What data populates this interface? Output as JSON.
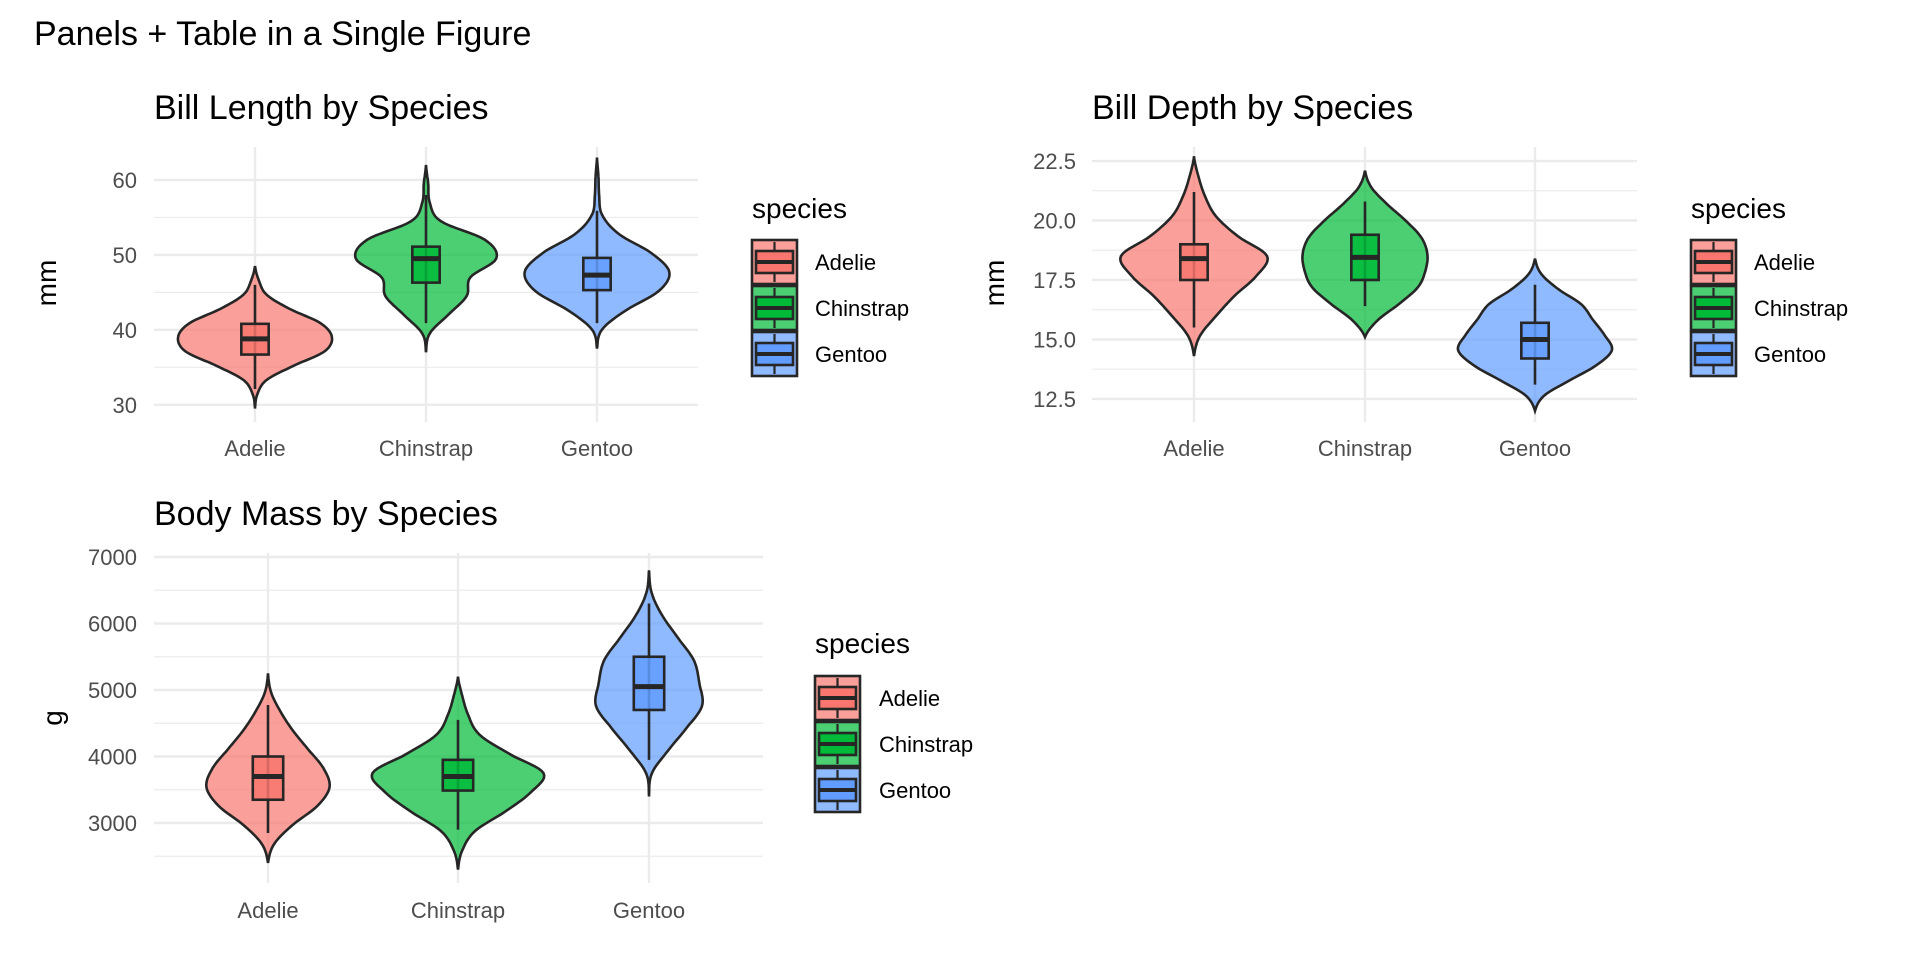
{
  "figure_title": "Panels + Table in a Single Figure",
  "colors": {
    "Adelie": "#F8766D",
    "Chinstrap": "#00BA38",
    "Gentoo": "#619CFF",
    "outline": "#262626",
    "grid": "#EBEBEB"
  },
  "chart_data": [
    {
      "type": "violin",
      "title": "Bill Length by Species",
      "xlabel": "",
      "ylabel": "mm",
      "categories": [
        "Adelie",
        "Chinstrap",
        "Gentoo"
      ],
      "yticks": [
        "30",
        "40",
        "50",
        "60"
      ],
      "ytick_values": [
        30,
        40,
        50,
        60
      ],
      "minor_ticks": [
        35,
        45,
        55
      ],
      "ylim": [
        27.7,
        64.4
      ],
      "grid": true,
      "legend": {
        "title": "species",
        "placement": "right",
        "entries": [
          "Adelie",
          "Chinstrap",
          "Gentoo"
        ]
      },
      "series": [
        {
          "name": "Adelie",
          "width_scale": 1.0,
          "violin": {
            "min": 29.5,
            "max": 48.5,
            "density": [
              0,
              0.03,
              0.15,
              0.5,
              0.9,
              1.0,
              0.85,
              0.45,
              0.15,
              0.05,
              0
            ]
          },
          "box": {
            "lower_whisker": 32.1,
            "q1": 36.7,
            "median": 38.8,
            "q3": 40.8,
            "upper_whisker": 46.0
          }
        },
        {
          "name": "Chinstrap",
          "width_scale": 0.96,
          "violin": {
            "min": 37,
            "max": 62,
            "density": [
              0,
              0.05,
              0.3,
              0.55,
              0.6,
              0.95,
              0.8,
              0.2,
              0.05,
              0.03,
              0
            ]
          },
          "box": {
            "lower_whisker": 40.9,
            "q1": 46.3,
            "median": 49.5,
            "q3": 51.1,
            "upper_whisker": 58.0
          }
        },
        {
          "name": "Gentoo",
          "width_scale": 0.94,
          "violin": {
            "min": 37.5,
            "max": 63,
            "density": [
              0,
              0.07,
              0.4,
              0.85,
              1.0,
              0.75,
              0.3,
              0.07,
              0.03,
              0.02,
              0
            ]
          },
          "box": {
            "lower_whisker": 40.9,
            "q1": 45.3,
            "median": 47.3,
            "q3": 49.6,
            "upper_whisker": 55.9
          }
        }
      ]
    },
    {
      "type": "violin",
      "title": "Bill Depth by Species",
      "xlabel": "",
      "ylabel": "mm",
      "categories": [
        "Adelie",
        "Chinstrap",
        "Gentoo"
      ],
      "yticks": [
        "12.5",
        "15.0",
        "17.5",
        "20.0",
        "22.5"
      ],
      "ytick_values": [
        12.5,
        15.0,
        17.5,
        20.0,
        22.5
      ],
      "minor_ticks": [
        13.75,
        16.25,
        18.75,
        21.25
      ],
      "ylim": [
        11.53,
        23.09
      ],
      "grid": true,
      "legend": {
        "title": "species",
        "placement": "right",
        "entries": [
          "Adelie",
          "Chinstrap",
          "Gentoo"
        ]
      },
      "series": [
        {
          "name": "Adelie",
          "width_scale": 0.95,
          "violin": {
            "min": 14.3,
            "max": 22.7,
            "density": [
              0,
              0.08,
              0.3,
              0.55,
              0.85,
              1.0,
              0.6,
              0.3,
              0.15,
              0.06,
              0
            ]
          },
          "box": {
            "lower_whisker": 15.5,
            "q1": 17.5,
            "median": 18.4,
            "q3": 19.0,
            "upper_whisker": 21.2
          }
        },
        {
          "name": "Chinstrap",
          "width_scale": 0.81,
          "violin": {
            "min": 15.1,
            "max": 22.1,
            "density": [
              0,
              0.2,
              0.55,
              0.85,
              0.97,
              1.0,
              0.9,
              0.65,
              0.35,
              0.1,
              0
            ]
          },
          "box": {
            "lower_whisker": 16.4,
            "q1": 17.5,
            "median": 18.45,
            "q3": 19.4,
            "upper_whisker": 20.8
          }
        },
        {
          "name": "Gentoo",
          "width_scale": 1.0,
          "violin": {
            "min": 12.0,
            "max": 18.4,
            "density": [
              0,
              0.12,
              0.45,
              0.8,
              1.0,
              0.9,
              0.75,
              0.6,
              0.3,
              0.08,
              0
            ]
          },
          "box": {
            "lower_whisker": 13.1,
            "q1": 14.2,
            "median": 15.0,
            "q3": 15.7,
            "upper_whisker": 17.3
          }
        }
      ]
    },
    {
      "type": "violin",
      "title": "Body Mass by Species",
      "xlabel": "",
      "ylabel": "g",
      "categories": [
        "Adelie",
        "Chinstrap",
        "Gentoo"
      ],
      "yticks": [
        "3000",
        "4000",
        "5000",
        "6000",
        "7000"
      ],
      "ytick_values": [
        3000,
        4000,
        5000,
        6000,
        7000
      ],
      "minor_ticks": [
        2500,
        3500,
        4500,
        5500,
        6500
      ],
      "ylim": [
        2098,
        7060
      ],
      "grid": true,
      "legend": {
        "title": "species",
        "placement": "right",
        "entries": [
          "Adelie",
          "Chinstrap",
          "Gentoo"
        ]
      },
      "series": [
        {
          "name": "Adelie",
          "width_scale": 0.72,
          "violin": {
            "min": 2400,
            "max": 5250,
            "density": [
              0,
              0.1,
              0.4,
              0.8,
              1.0,
              0.9,
              0.65,
              0.4,
              0.2,
              0.05,
              0
            ]
          },
          "box": {
            "lower_whisker": 2850,
            "q1": 3350,
            "median": 3700,
            "q3": 4000,
            "upper_whisker": 4775
          }
        },
        {
          "name": "Chinstrap",
          "width_scale": 1.0,
          "violin": {
            "min": 2300,
            "max": 5200,
            "density": [
              0,
              0.05,
              0.2,
              0.55,
              0.85,
              1.0,
              0.6,
              0.25,
              0.12,
              0.05,
              0
            ]
          },
          "box": {
            "lower_whisker": 2900,
            "q1": 3488,
            "median": 3700,
            "q3": 3950,
            "upper_whisker": 4550
          }
        },
        {
          "name": "Gentoo",
          "width_scale": 0.62,
          "violin": {
            "min": 3400,
            "max": 6800,
            "density": [
              0,
              0.05,
              0.35,
              0.7,
              1.0,
              0.95,
              0.85,
              0.55,
              0.25,
              0.05,
              0
            ]
          },
          "box": {
            "lower_whisker": 3950,
            "q1": 4700,
            "median": 5050,
            "q3": 5500,
            "upper_whisker": 6300
          }
        }
      ]
    }
  ]
}
